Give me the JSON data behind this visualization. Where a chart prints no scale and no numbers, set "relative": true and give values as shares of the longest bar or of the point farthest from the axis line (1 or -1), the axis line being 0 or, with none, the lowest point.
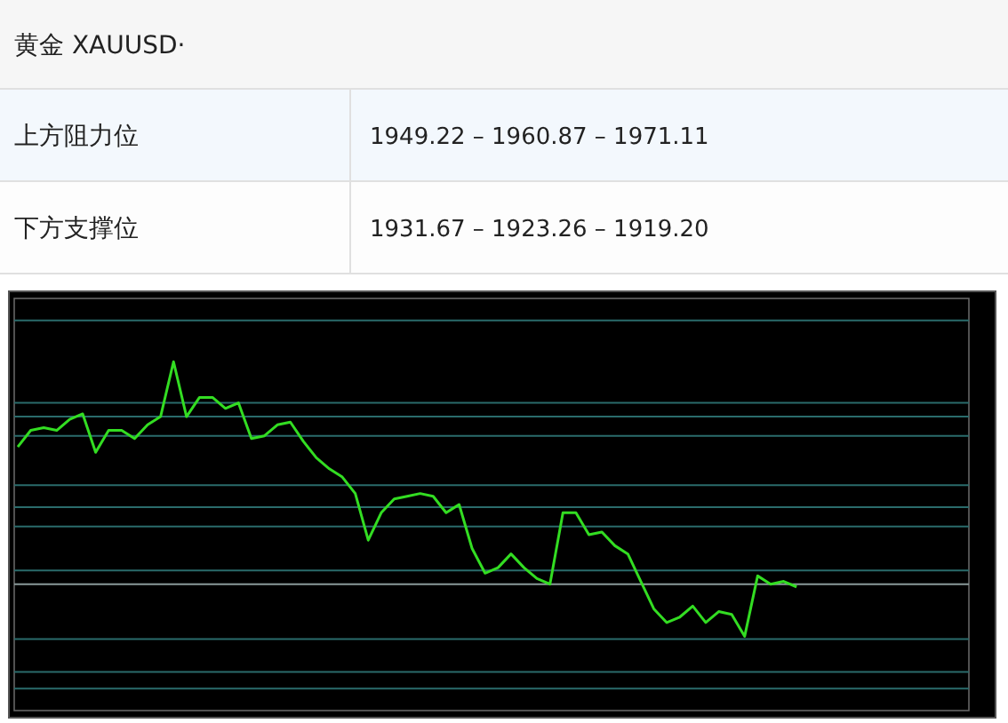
{
  "chart_data": [
    {
      "type": "other",
      "title": "黄金  XAUUSD·",
      "categories": [
        "上方阻力位",
        "下方支撑位"
      ],
      "annotations": [
        "1949.22 – 1960.87 – 1971.11",
        "1931.67 – 1923.26 – 1919.20"
      ]
    },
    {
      "type": "line",
      "relative": true,
      "marker": "none",
      "line_style": "solid",
      "categories": [
        null,
        null,
        null,
        null,
        null,
        null,
        null,
        null,
        null,
        null,
        null,
        null,
        null,
        null,
        null,
        null,
        null,
        null,
        null,
        null,
        null,
        null,
        null,
        null,
        null,
        null,
        null,
        null,
        null,
        null,
        null,
        null,
        null,
        null,
        null,
        null,
        null,
        null,
        null,
        null,
        null,
        null,
        null,
        null,
        null,
        null,
        null,
        null,
        null,
        null,
        null,
        null,
        null,
        null,
        null,
        null,
        null,
        null,
        null,
        null,
        null,
        null,
        null,
        null,
        null,
        null,
        null,
        null,
        null,
        null,
        null,
        null,
        null,
        null
      ],
      "series": [
        {
          "color": "#33dd22",
          "values": [
            0.69,
            0.75,
            0.76,
            0.75,
            0.79,
            0.81,
            0.67,
            0.75,
            0.75,
            0.72,
            0.77,
            0.8,
            1,
            0.8,
            0.87,
            0.87,
            0.83,
            0.85,
            0.72,
            0.73,
            0.77,
            0.78,
            0.71,
            0.65,
            0.61,
            0.58,
            0.52,
            0.35,
            0.45,
            0.5,
            0.51,
            0.52,
            0.51,
            0.45,
            0.48,
            0.32,
            0.23,
            0.25,
            0.3,
            0.25,
            0.21,
            0.19,
            0.45,
            0.45,
            0.37,
            0.38,
            0.33,
            0.3,
            0.2,
            0.1,
            0.05,
            0.07,
            0.11,
            0.05,
            0.09,
            0.08,
            0,
            0.22,
            0.19,
            0.2,
            0.18,
            null,
            null,
            null,
            null,
            null,
            null,
            null,
            null,
            null,
            null,
            null,
            null,
            null
          ]
        }
      ],
      "ref_lines": [
        {
          "axis": "y",
          "value": 1.15,
          "color": "#2a6b6b"
        },
        {
          "axis": "y",
          "value": 0.85,
          "color": "#2a6b6b"
        },
        {
          "axis": "y",
          "value": 0.8,
          "color": "#2a6b6b"
        },
        {
          "axis": "y",
          "value": 0.73,
          "color": "#2a6b6b"
        },
        {
          "axis": "y",
          "value": 0.55,
          "color": "#2a6b6b"
        },
        {
          "axis": "y",
          "value": 0.47,
          "color": "#2a6b6b"
        },
        {
          "axis": "y",
          "value": 0.4,
          "color": "#2a6b6b"
        },
        {
          "axis": "y",
          "value": 0.24,
          "color": "#2a6b6b"
        },
        {
          "axis": "y",
          "value": 0.19,
          "color": "#8a9a9a"
        },
        {
          "axis": "y",
          "value": -0.01,
          "color": "#2a6b6b"
        },
        {
          "axis": "y",
          "value": -0.13,
          "color": "#2a6b6b"
        },
        {
          "axis": "y",
          "value": -0.19,
          "color": "#2a6b6b"
        }
      ]
    }
  ]
}
